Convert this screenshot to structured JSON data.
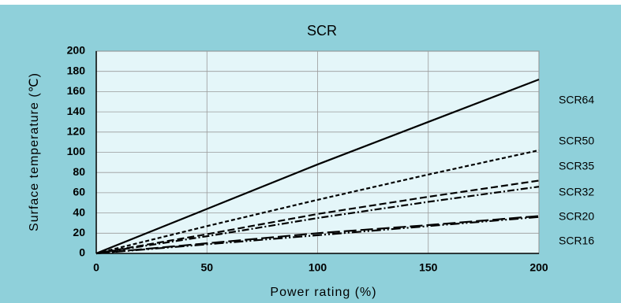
{
  "chart_data": {
    "type": "line",
    "title": "SCR",
    "x_label": "Power rating (%)",
    "y_label": "Surface temperature (℃)",
    "x": [
      0,
      50,
      100,
      150,
      200
    ],
    "series": [
      {
        "name": "SCR64",
        "color": "#000000",
        "dash": "solid",
        "values": [
          0,
          44,
          88,
          130,
          172
        ]
      },
      {
        "name": "SCR50",
        "color": "#000000",
        "dash": "short-dash",
        "values": [
          0,
          27,
          53,
          78,
          102
        ]
      },
      {
        "name": "SCR35",
        "color": "#000000",
        "dash": "dash",
        "values": [
          0,
          19,
          39,
          56,
          72
        ]
      },
      {
        "name": "SCR32",
        "color": "#000000",
        "dash": "dash-dot",
        "values": [
          0,
          17,
          35,
          51,
          66
        ]
      },
      {
        "name": "SCR20",
        "color": "#000000",
        "dash": "long-dash",
        "values": [
          0,
          10,
          20,
          28,
          37
        ]
      },
      {
        "name": "SCR16",
        "color": "#000000",
        "dash": "dash-dot-dot",
        "values": [
          0,
          9,
          18,
          27,
          36
        ]
      }
    ],
    "xlim": [
      0,
      200
    ],
    "xticks": [
      0,
      50,
      100,
      150,
      200
    ],
    "ylim": [
      0,
      200
    ],
    "yticks": [
      0,
      20,
      40,
      60,
      80,
      100,
      120,
      140,
      160,
      180,
      200
    ],
    "grid": true
  }
}
